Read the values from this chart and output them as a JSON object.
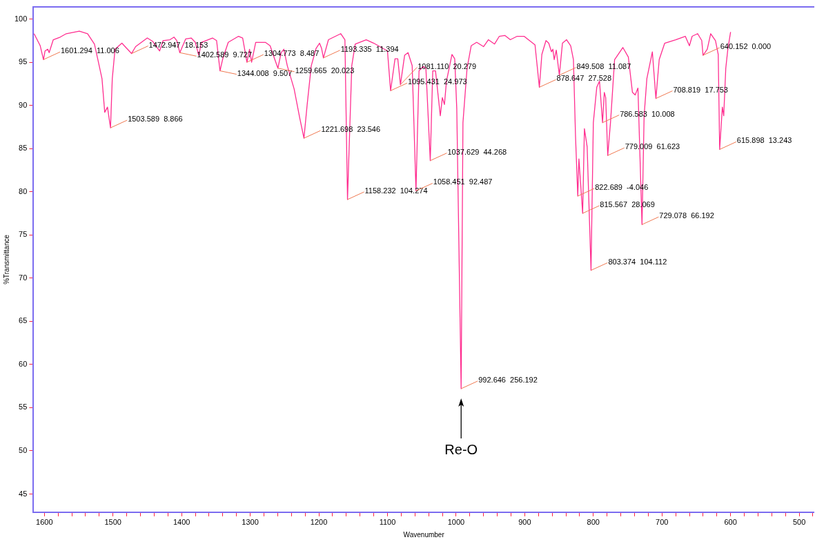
{
  "chart_data": {
    "type": "line",
    "xlabel": "Wavenumber",
    "ylabel": "%Transmittance",
    "xlim": [
      1616,
      478
    ],
    "ylim": [
      42.9,
      101.4
    ],
    "xticks": [
      1600,
      {
        "value": 1580,
        "label": null
      },
      {
        "value": 1560,
        "label": null
      },
      {
        "value": 1540,
        "label": null
      },
      {
        "value": 1520,
        "label": null
      },
      1500,
      {
        "value": 1480,
        "label": null
      },
      {
        "value": 1460,
        "label": null
      },
      {
        "value": 1440,
        "label": null
      },
      {
        "value": 1420,
        "label": null
      },
      1400,
      {
        "value": 1380,
        "label": null
      },
      {
        "value": 1360,
        "label": null
      },
      {
        "value": 1340,
        "label": null
      },
      {
        "value": 1320,
        "label": null
      },
      1300,
      {
        "value": 1280,
        "label": null
      },
      {
        "value": 1260,
        "label": null
      },
      {
        "value": 1240,
        "label": null
      },
      {
        "value": 1220,
        "label": null
      },
      1200,
      {
        "value": 1180,
        "label": null
      },
      {
        "value": 1160,
        "label": null
      },
      {
        "value": 1140,
        "label": null
      },
      {
        "value": 1120,
        "label": null
      },
      1100,
      {
        "value": 1080,
        "label": null
      },
      {
        "value": 1060,
        "label": null
      },
      {
        "value": 1040,
        "label": null
      },
      {
        "value": 1020,
        "label": null
      },
      1000,
      {
        "value": 980,
        "label": null
      },
      {
        "value": 960,
        "label": null
      },
      {
        "value": 940,
        "label": null
      },
      {
        "value": 920,
        "label": null
      },
      900,
      {
        "value": 880,
        "label": null
      },
      {
        "value": 860,
        "label": null
      },
      {
        "value": 840,
        "label": null
      },
      {
        "value": 820,
        "label": null
      },
      800,
      {
        "value": 780,
        "label": null
      },
      {
        "value": 760,
        "label": null
      },
      {
        "value": 740,
        "label": null
      },
      {
        "value": 720,
        "label": null
      },
      700,
      {
        "value": 680,
        "label": null
      },
      {
        "value": 660,
        "label": null
      },
      {
        "value": 640,
        "label": null
      },
      {
        "value": 620,
        "label": null
      },
      600,
      {
        "value": 580,
        "label": null
      },
      {
        "value": 560,
        "label": null
      },
      {
        "value": 540,
        "label": null
      },
      {
        "value": 520,
        "label": null
      },
      500,
      {
        "value": 480,
        "label": null
      }
    ],
    "yticks": [
      45,
      50,
      55,
      60,
      65,
      70,
      75,
      80,
      85,
      90,
      95,
      100
    ],
    "grid": false,
    "legend": false,
    "marker": "none",
    "line_style": "solid",
    "series": [
      {
        "color": "#ff2d8f",
        "x": [
          1615,
          1606,
          1601.294,
          1599,
          1595,
          1593,
          1587,
          1577,
          1568,
          1549,
          1537,
          1527,
          1522,
          1516,
          1512,
          1508,
          1503.589,
          1501,
          1497,
          1487,
          1472.947,
          1467,
          1450,
          1442,
          1432,
          1427,
          1417,
          1411,
          1407,
          1402.589,
          1394,
          1386,
          1380,
          1375,
          1371,
          1355,
          1349,
          1344.008,
          1340,
          1332,
          1317,
          1311,
          1304.773,
          1301,
          1298,
          1292,
          1278,
          1271,
          1265,
          1259.665,
          1255,
          1251,
          1246,
          1236,
          1228,
          1221.698,
          1217,
          1211,
          1204,
          1199,
          1196,
          1193.335,
          1186,
          1168,
          1162,
          1158.232,
          1152,
          1147,
          1131,
          1120,
          1100,
          1095.431,
          1089,
          1085,
          1081.11,
          1075,
          1070,
          1064,
          1058.451,
          1054,
          1048,
          1044,
          1037.629,
          1034,
          1030,
          1023,
          1020,
          1017,
          1014,
          1006,
          1002,
          999,
          992.646,
          990,
          984,
          978,
          970,
          960,
          953,
          944,
          937,
          929,
          921,
          911,
          901,
          893,
          885,
          878.647,
          875,
          869,
          865,
          861,
          859,
          857,
          854,
          849.508,
          845,
          839,
          833,
          829,
          826,
          822.689,
          821,
          815.567,
          813,
          809,
          803.374,
          800,
          795,
          791,
          786.583,
          784,
          782,
          779.009,
          775,
          769,
          757,
          749,
          743,
          739,
          735,
          729.078,
          726,
          722,
          714,
          708.819,
          704,
          696,
          680,
          666,
          660,
          656,
          648,
          642,
          640.152,
          634,
          629,
          622,
          618,
          615.898,
          612,
          610,
          607,
          604,
          600
        ],
        "values": [
          98.3,
          96.9,
          95.3,
          96.3,
          96.5,
          96.1,
          97.6,
          97.9,
          98.3,
          98.6,
          98.3,
          97.1,
          95.3,
          93.1,
          89.2,
          89.8,
          87.4,
          93.1,
          96.5,
          97.2,
          96.0,
          96.8,
          97.8,
          97.4,
          96.3,
          97.5,
          97.6,
          97.9,
          97.5,
          96.1,
          97.7,
          97.8,
          97.3,
          95.8,
          97.3,
          97.8,
          97.5,
          94.0,
          95.4,
          97.3,
          98.0,
          97.8,
          95.0,
          96.5,
          95.0,
          97.3,
          97.3,
          96.9,
          95.5,
          94.3,
          96.1,
          96.5,
          94.6,
          91.9,
          88.6,
          86.2,
          90.1,
          94.6,
          96.6,
          97.2,
          96.6,
          95.5,
          97.6,
          98.3,
          97.6,
          79.1,
          94.6,
          97.1,
          97.6,
          97.2,
          96.3,
          91.7,
          95.4,
          95.4,
          92.4,
          95.8,
          96.1,
          94.6,
          80.1,
          94.0,
          94.5,
          94.3,
          83.6,
          94.0,
          94.0,
          88.8,
          90.9,
          90.1,
          92.8,
          95.9,
          95.4,
          89.6,
          57.2,
          88.0,
          94.3,
          96.9,
          97.3,
          96.8,
          97.6,
          97.1,
          98.0,
          98.1,
          97.6,
          98.0,
          98.0,
          97.5,
          97.0,
          92.1,
          95.9,
          97.5,
          97.2,
          96.2,
          96.5,
          95.3,
          96.4,
          93.5,
          97.2,
          97.6,
          96.9,
          95.3,
          86.5,
          79.5,
          83.8,
          77.5,
          87.3,
          85.2,
          70.9,
          88.0,
          92.1,
          92.8,
          88.0,
          91.5,
          90.9,
          84.2,
          88.0,
          95.3,
          96.7,
          95.6,
          91.5,
          91.2,
          92.0,
          76.2,
          88.8,
          93.1,
          96.2,
          90.8,
          95.3,
          97.2,
          97.6,
          98.0,
          96.9,
          98.0,
          98.3,
          97.5,
          95.8,
          96.5,
          98.3,
          97.5,
          95.9,
          84.9,
          89.8,
          88.8,
          94.3,
          96.5,
          98.5
        ]
      }
    ],
    "annotations": [
      {
        "text": "1601.294  11.006",
        "x": 1601.294,
        "y": 95.3
      },
      {
        "text": "1503.589  8.866",
        "x": 1503.589,
        "y": 87.4
      },
      {
        "text": "1472.947  18.153",
        "x": 1472.947,
        "y": 96.0
      },
      {
        "text": "1402.589  9.727",
        "x": 1402.589,
        "y": 96.1
      },
      {
        "text": "1344.008  9.507",
        "x": 1344.008,
        "y": 94.0
      },
      {
        "text": "1304.773  8.487",
        "x": 1304.773,
        "y": 95.0
      },
      {
        "text": "1259.665  20.023",
        "x": 1259.665,
        "y": 94.3
      },
      {
        "text": "1221.698  23.546",
        "x": 1221.698,
        "y": 86.2
      },
      {
        "text": "1193.335  11.394",
        "x": 1193.335,
        "y": 95.5
      },
      {
        "text": "1158.232  104.274",
        "x": 1158.232,
        "y": 79.1
      },
      {
        "text": "1095.431  24.973",
        "x": 1095.431,
        "y": 91.7
      },
      {
        "text": "1081.110  20.279",
        "x": 1081.11,
        "y": 92.4
      },
      {
        "text": "1058.451  92.487",
        "x": 1058.451,
        "y": 80.1
      },
      {
        "text": "1037.629  44.268",
        "x": 1037.629,
        "y": 83.6
      },
      {
        "text": "992.646  256.192",
        "x": 992.646,
        "y": 57.2
      },
      {
        "text": "878.647  27.528",
        "x": 878.647,
        "y": 92.1
      },
      {
        "text": "849.508  11.087",
        "x": 849.508,
        "y": 93.5
      },
      {
        "text": "822.689  -4.046",
        "x": 822.689,
        "y": 79.5
      },
      {
        "text": "815.567  28.069",
        "x": 815.567,
        "y": 77.5
      },
      {
        "text": "803.374  104.112",
        "x": 803.374,
        "y": 70.9
      },
      {
        "text": "786.583  10.008",
        "x": 786.583,
        "y": 88.0
      },
      {
        "text": "779.009  61.623",
        "x": 779.009,
        "y": 84.2
      },
      {
        "text": "729.078  66.192",
        "x": 729.078,
        "y": 76.2
      },
      {
        "text": "708.819  17.753",
        "x": 708.819,
        "y": 90.8
      },
      {
        "text": "640.152  0.000",
        "x": 640.152,
        "y": 95.8
      },
      {
        "text": "615.898  13.243",
        "x": 615.898,
        "y": 84.9
      },
      "Re-O"
    ]
  }
}
